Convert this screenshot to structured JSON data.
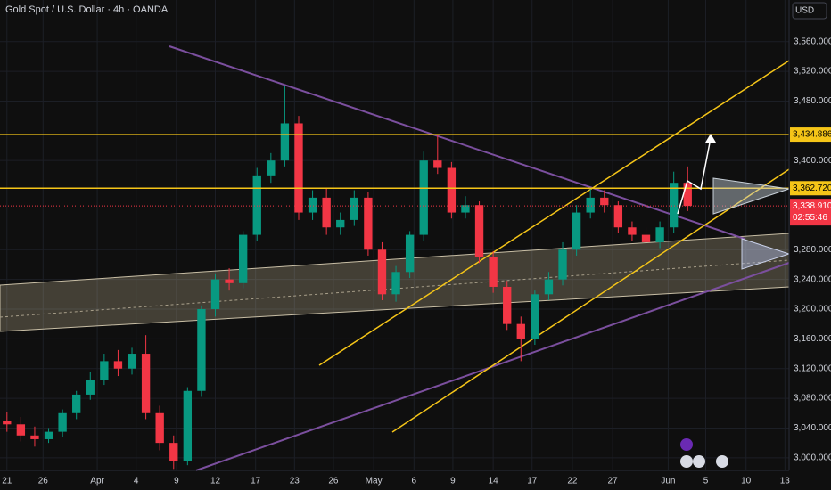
{
  "chart_data": {
    "type": "candlestick",
    "title": "Gold Spot / U.S. Dollar · 4h · OANDA",
    "currency": "USD",
    "up_color": "#089981",
    "down_color": "#f23645",
    "open": [
      3050,
      3045,
      3030,
      3025,
      3035,
      3060,
      3085,
      3105,
      3130,
      3120,
      3140,
      3060,
      3020,
      2995,
      3090,
      3200,
      3240,
      3235,
      3300,
      3380,
      3400,
      3450,
      3330,
      3350,
      3310,
      3320,
      3350,
      3280,
      3220,
      3250,
      3300,
      3400,
      3390,
      3330,
      3340,
      3270,
      3230,
      3180,
      3160,
      3220,
      3240,
      3280,
      3330,
      3350,
      3340,
      3310,
      3300,
      3290,
      3310,
      3370
    ],
    "high": [
      3062,
      3055,
      3042,
      3040,
      3065,
      3090,
      3115,
      3140,
      3145,
      3148,
      3165,
      3070,
      3030,
      3095,
      3205,
      3248,
      3255,
      3305,
      3390,
      3410,
      3500,
      3460,
      3360,
      3362,
      3330,
      3360,
      3358,
      3290,
      3258,
      3305,
      3412,
      3435,
      3398,
      3352,
      3345,
      3278,
      3238,
      3190,
      3225,
      3250,
      3290,
      3340,
      3362,
      3360,
      3345,
      3318,
      3310,
      3318,
      3385,
      3392
    ],
    "low": [
      3035,
      3022,
      3015,
      3020,
      3028,
      3052,
      3078,
      3098,
      3110,
      3112,
      3052,
      3010,
      2985,
      2990,
      3082,
      3190,
      3225,
      3228,
      3292,
      3370,
      3392,
      3320,
      3320,
      3300,
      3300,
      3312,
      3272,
      3212,
      3210,
      3242,
      3292,
      3382,
      3322,
      3322,
      3262,
      3222,
      3172,
      3130,
      3152,
      3212,
      3232,
      3272,
      3322,
      3330,
      3302,
      3292,
      3280,
      3282,
      3302,
      3332
    ],
    "close": [
      3045,
      3030,
      3025,
      3035,
      3060,
      3085,
      3105,
      3130,
      3120,
      3140,
      3060,
      3020,
      2995,
      3090,
      3200,
      3240,
      3235,
      3300,
      3380,
      3400,
      3450,
      3330,
      3350,
      3310,
      3320,
      3350,
      3280,
      3220,
      3250,
      3300,
      3400,
      3390,
      3330,
      3340,
      3270,
      3230,
      3180,
      3160,
      3220,
      3240,
      3280,
      3330,
      3350,
      3340,
      3310,
      3300,
      3290,
      3310,
      3370,
      3338.91
    ],
    "xlim": [
      0,
      56.8
    ],
    "xticks": [
      {
        "value": 0.5,
        "label": "21"
      },
      {
        "value": 3.1,
        "label": "26"
      },
      {
        "value": 7,
        "label": "Apr"
      },
      {
        "value": 9.8,
        "label": "4"
      },
      {
        "value": 12.7,
        "label": "9"
      },
      {
        "value": 15.5,
        "label": "12"
      },
      {
        "value": 18.4,
        "label": "17"
      },
      {
        "value": 21.2,
        "label": "23"
      },
      {
        "value": 24,
        "label": "26"
      },
      {
        "value": 26.9,
        "label": "May"
      },
      {
        "value": 29.8,
        "label": "6"
      },
      {
        "value": 32.6,
        "label": "9"
      },
      {
        "value": 35.5,
        "label": "14"
      },
      {
        "value": 38.3,
        "label": "17"
      },
      {
        "value": 41.2,
        "label": "22"
      },
      {
        "value": 44.1,
        "label": "27"
      },
      {
        "value": 48.1,
        "label": "Jun"
      },
      {
        "value": 50.8,
        "label": "5"
      },
      {
        "value": 53.7,
        "label": "10"
      },
      {
        "value": 56.5,
        "label": "13"
      }
    ],
    "ylim": [
      2983,
      3616
    ],
    "yticks": [
      {
        "value": 3000,
        "label": "3,000.000"
      },
      {
        "value": 3040,
        "label": "3,040.000"
      },
      {
        "value": 3080,
        "label": "3,080.000"
      },
      {
        "value": 3120,
        "label": "3,120.000"
      },
      {
        "value": 3160,
        "label": "3,160.000"
      },
      {
        "value": 3200,
        "label": "3,200.000"
      },
      {
        "value": 3240,
        "label": "3,240.000"
      },
      {
        "value": 3280,
        "label": "3,280.000"
      },
      {
        "value": 3400,
        "label": "3,400.000"
      },
      {
        "value": 3480,
        "label": "3,480.000"
      },
      {
        "value": 3520,
        "label": "3,520.000"
      },
      {
        "value": 3560,
        "label": "3,560.000"
      }
    ],
    "levels": [
      {
        "value": 3434.886,
        "label": "3,434.886"
      },
      {
        "value": 3362.72,
        "label": "3,362.720"
      }
    ],
    "current_price": {
      "value": 3338.91,
      "label": "3,338.910",
      "countdown": "02:55:46"
    }
  }
}
